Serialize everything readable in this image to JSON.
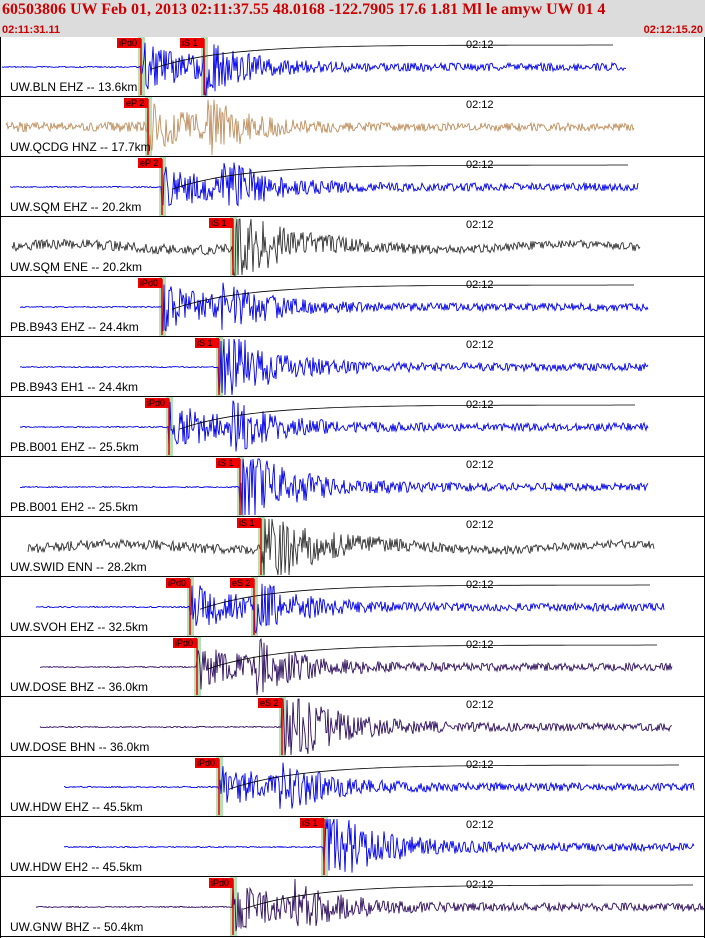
{
  "header": {
    "title": "60503806 UW Feb 01, 2013 02:11:37.55    48.0168 -122.7905 17.6 1.81 Ml le amyw UW 01    4",
    "start_time": "02:11:31.11",
    "end_time": "02:12:15.20"
  },
  "colors": {
    "header_bg": "#dcdcdc",
    "header_text": "#cc0000",
    "pick_flag": "#ee0000",
    "pick_shade": "#a8dca8",
    "coda_line": "#000000",
    "border": "#000000"
  },
  "chart_data": {
    "type": "line",
    "title": "60503806 UW Feb 01, 2013 02:11:37.55    48.0168 -122.7905 17.6 1.81 Ml le amyw UW 01    4",
    "x_range": [
      "02:11:31.11",
      "02:12:15.20"
    ],
    "tick_label": "02:12",
    "grid": false,
    "traces": [
      {
        "label": "UW.BLN EHZ -- 13.6km",
        "color": "#0000ee",
        "picks": [
          {
            "label": "iPd0",
            "t": 0.2
          },
          {
            "label": "iS 1",
            "t": 0.29
          }
        ]
      },
      {
        "label": "UW.QCDG HNZ -- 17.7km",
        "color": "#c09060",
        "picks": [
          {
            "label": "eP 2",
            "t": 0.21
          }
        ]
      },
      {
        "label": "UW.SQM EHZ -- 20.2km",
        "color": "#0000ee",
        "picks": [
          {
            "label": "eP 2",
            "t": 0.23
          }
        ]
      },
      {
        "label": "UW.SQM ENE -- 20.2km",
        "color": "#333333",
        "picks": [
          {
            "label": "iS 1",
            "t": 0.33
          }
        ]
      },
      {
        "label": "PB.B943 EHZ -- 24.4km",
        "color": "#0000ee",
        "picks": [
          {
            "label": "iPd0",
            "t": 0.23
          }
        ]
      },
      {
        "label": "PB.B943 EH1 -- 24.4km",
        "color": "#0000ee",
        "picks": [
          {
            "label": "iS 1",
            "t": 0.31
          }
        ]
      },
      {
        "label": "PB.B001 EHZ -- 25.5km",
        "color": "#0000ee",
        "picks": [
          {
            "label": "iPd0",
            "t": 0.24
          }
        ]
      },
      {
        "label": "PB.B001 EH2 -- 25.5km",
        "color": "#0000ee",
        "picks": [
          {
            "label": "iS 1",
            "t": 0.34
          }
        ]
      },
      {
        "label": "UW.SWID ENN -- 28.2km",
        "color": "#333333",
        "picks": [
          {
            "label": "iS 1",
            "t": 0.37
          }
        ]
      },
      {
        "label": "UW.SVOH EHZ -- 32.5km",
        "color": "#0000ee",
        "picks": [
          {
            "label": "iPd0",
            "t": 0.27
          },
          {
            "label": "eS 2",
            "t": 0.36
          }
        ]
      },
      {
        "label": "UW.DOSE BHZ -- 36.0km",
        "color": "#301060",
        "picks": [
          {
            "label": "iPd0",
            "t": 0.28
          }
        ]
      },
      {
        "label": "UW.DOSE BHN -- 36.0km",
        "color": "#301060",
        "picks": [
          {
            "label": "eS 2",
            "t": 0.4
          }
        ]
      },
      {
        "label": "UW.HDW EHZ -- 45.5km",
        "color": "#0000ee",
        "picks": [
          {
            "label": "iPd0",
            "t": 0.31
          }
        ]
      },
      {
        "label": "UW.HDW EH2 -- 45.5km",
        "color": "#0000ee",
        "picks": [
          {
            "label": "iS 1",
            "t": 0.46
          }
        ]
      },
      {
        "label": "UW.GNW BHZ -- 50.4km",
        "color": "#301060",
        "picks": [
          {
            "label": "iPd0",
            "t": 0.33
          }
        ]
      }
    ]
  }
}
